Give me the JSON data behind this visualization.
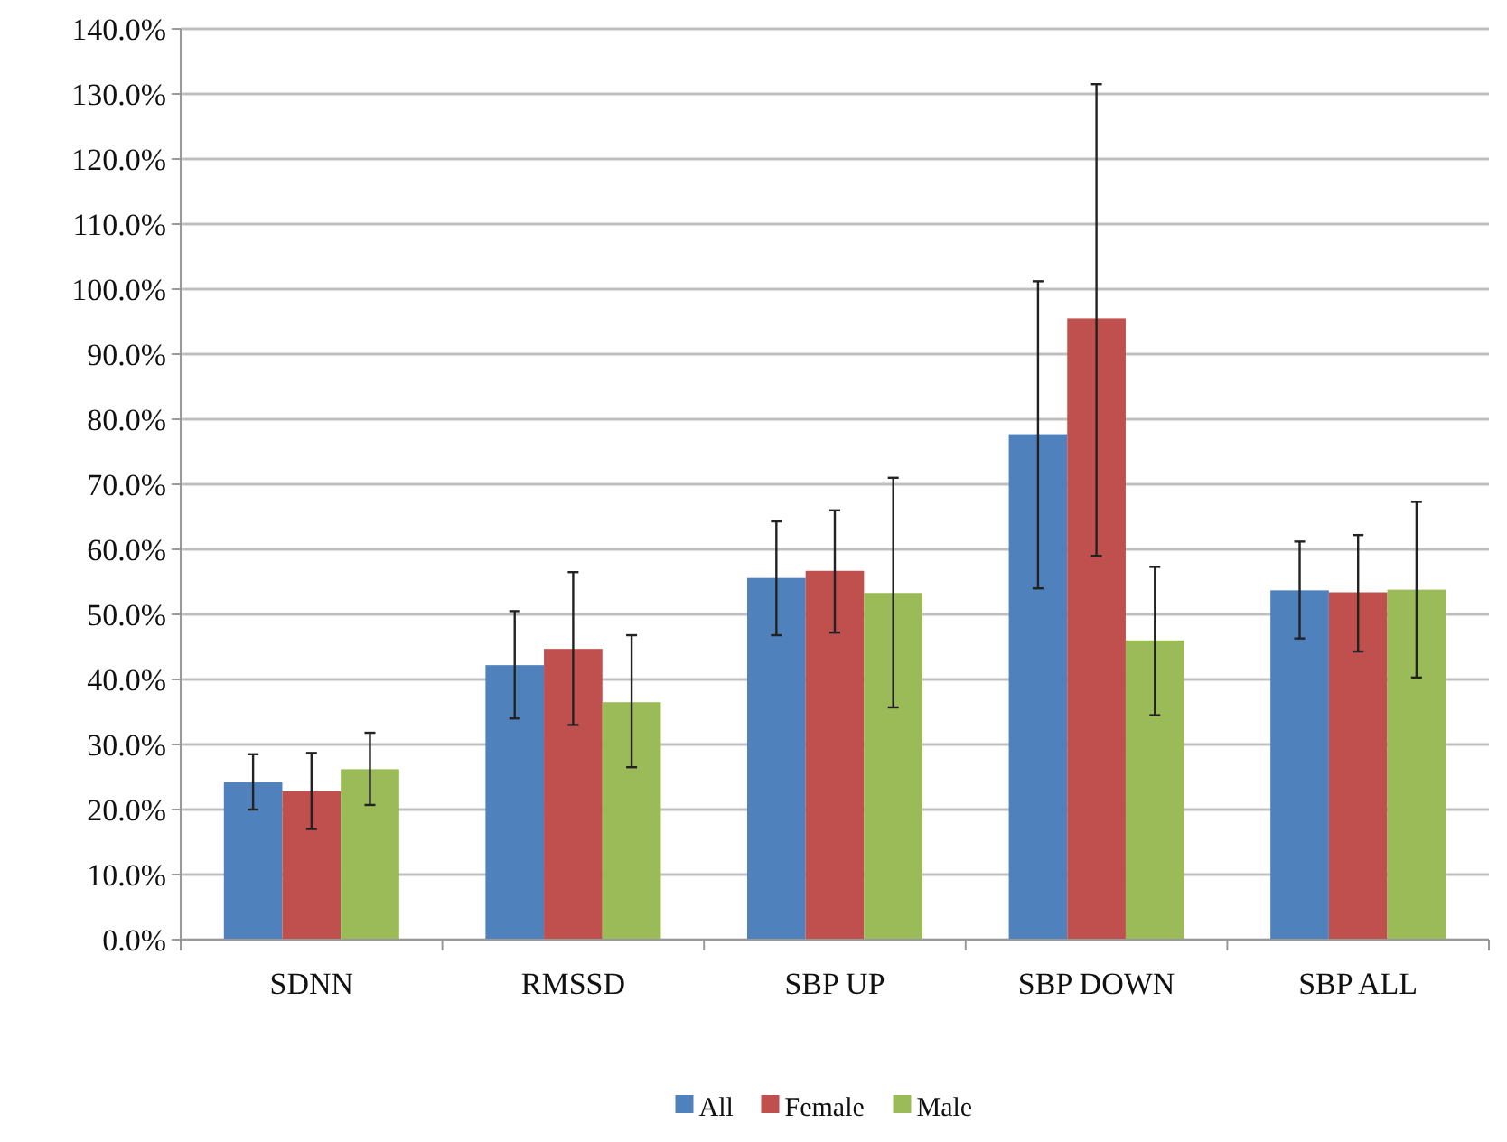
{
  "chart_data": {
    "type": "bar",
    "categories": [
      "SDNN",
      "RMSSD",
      "SBP UP",
      "SBP DOWN",
      "SBP ALL"
    ],
    "series": [
      {
        "name": "All",
        "color": "#4f81bd",
        "values": [
          24.2,
          42.2,
          55.6,
          77.7,
          53.7
        ],
        "errors": [
          [
            20,
            28.5
          ],
          [
            34,
            50.5
          ],
          [
            46.8,
            64.3
          ],
          [
            54,
            101.2
          ],
          [
            46.3,
            61.2
          ]
        ]
      },
      {
        "name": "Female",
        "color": "#c0504d",
        "values": [
          22.8,
          44.7,
          56.7,
          95.5,
          53.4
        ],
        "errors": [
          [
            17,
            28.7
          ],
          [
            33,
            56.5
          ],
          [
            47.2,
            66
          ],
          [
            59,
            131.5
          ],
          [
            44.3,
            62.2
          ]
        ]
      },
      {
        "name": "Male",
        "color": "#9bbb59",
        "values": [
          26.2,
          36.5,
          53.3,
          46,
          53.8
        ],
        "errors": [
          [
            20.7,
            31.8
          ],
          [
            26.5,
            46.8
          ],
          [
            35.7,
            71
          ],
          [
            34.5,
            57.3
          ],
          [
            40.3,
            67.3
          ]
        ]
      }
    ],
    "ylim": [
      0,
      140
    ],
    "yticks": [
      {
        "value": 0,
        "label": "0.0%"
      },
      {
        "value": 10,
        "label": "10.0%"
      },
      {
        "value": 20,
        "label": "20.0%"
      },
      {
        "value": 30,
        "label": "30.0%"
      },
      {
        "value": 40,
        "label": "40.0%"
      },
      {
        "value": 50,
        "label": "50.0%"
      },
      {
        "value": 60,
        "label": "60.0%"
      },
      {
        "value": 70,
        "label": "70.0%"
      },
      {
        "value": 80,
        "label": "80.0%"
      },
      {
        "value": 90,
        "label": "90.0%"
      },
      {
        "value": 100,
        "label": "100.0%"
      },
      {
        "value": 110,
        "label": "110.0%"
      },
      {
        "value": 120,
        "label": "120.0%"
      },
      {
        "value": 130,
        "label": "130.0%"
      },
      {
        "value": 140,
        "label": "140.0%"
      }
    ],
    "grid": "y",
    "legend": "bottom"
  }
}
